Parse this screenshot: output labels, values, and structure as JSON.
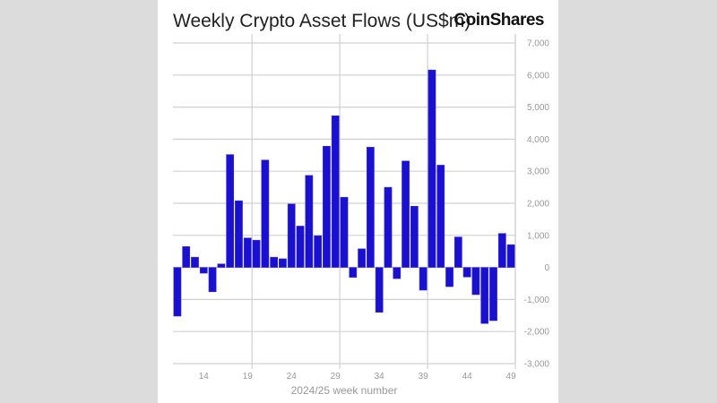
{
  "chart_data": {
    "type": "bar",
    "title": "Weekly Crypto Asset Flows (US$m)",
    "brand": "CoinShares",
    "xlabel": "2024/25 week number",
    "ylabel": "",
    "ylim": [
      -3000,
      7000
    ],
    "yticks": [
      7000,
      6000,
      5000,
      4000,
      3000,
      2000,
      1000,
      0,
      -1000,
      -2000,
      -3000
    ],
    "ytick_labels": [
      "7,000",
      "6,000",
      "5,000",
      "4,000",
      "3,000",
      "2,000",
      "1,000",
      "0",
      "-1,000",
      "-2,000",
      "-3,000"
    ],
    "xtick_labels": [
      "14",
      "19",
      "24",
      "29",
      "34",
      "39",
      "44",
      "49"
    ],
    "grid": true,
    "axis_side": "right",
    "bar_color": "#1a10d0",
    "categories": [
      11,
      12,
      13,
      14,
      15,
      16,
      17,
      18,
      19,
      20,
      21,
      22,
      23,
      24,
      25,
      26,
      27,
      28,
      29,
      30,
      31,
      32,
      33,
      34,
      35,
      36,
      37,
      38,
      39,
      40,
      41,
      42,
      43,
      44,
      45,
      46,
      47,
      48,
      49
    ],
    "values": [
      -1520,
      650,
      320,
      -180,
      -760,
      110,
      3520,
      2080,
      920,
      850,
      3350,
      320,
      270,
      1980,
      1290,
      2870,
      990,
      3780,
      4730,
      2190,
      -310,
      580,
      3750,
      -1400,
      2500,
      -350,
      3320,
      1910,
      -710,
      6160,
      3190,
      -600,
      950,
      -300,
      -850,
      -1750,
      -1660,
      1060,
      710
    ]
  }
}
